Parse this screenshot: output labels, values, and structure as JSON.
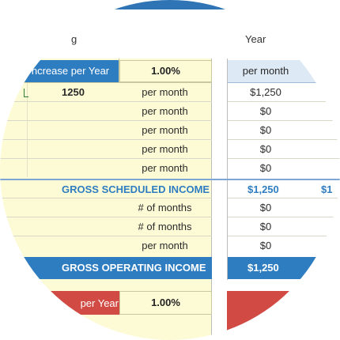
{
  "header": {
    "left_label": "g",
    "right_label": "Year"
  },
  "increase_row": {
    "label": "ncrease per Year",
    "value": "1.00%",
    "unit": "per month"
  },
  "rows": [
    {
      "amount": "1250",
      "unit": "per month",
      "value": "$1,250"
    },
    {
      "amount": "",
      "unit": "per month",
      "value": "$0"
    },
    {
      "amount": "",
      "unit": "per month",
      "value": "$0"
    },
    {
      "amount": "",
      "unit": "per month",
      "value": "$0"
    },
    {
      "amount": "",
      "unit": "per month",
      "value": "$0"
    }
  ],
  "gross_scheduled_income": {
    "label": "GROSS SCHEDULED INCOME",
    "value": "$1,250",
    "next_value": "$1"
  },
  "rows_b": [
    {
      "unit": "# of months",
      "value": "$0"
    },
    {
      "unit": "# of months",
      "value": "$0"
    },
    {
      "unit": "per month",
      "value": "$0"
    }
  ],
  "gross_operating_income": {
    "label": "GROSS OPERATING INCOME",
    "value": "$1,250"
  },
  "expense_row": {
    "label": "per Year",
    "value": "1.00%"
  },
  "colors": {
    "blue": "#2f7dc1",
    "yellow": "#fdfbd6",
    "red": "#d14b44"
  }
}
